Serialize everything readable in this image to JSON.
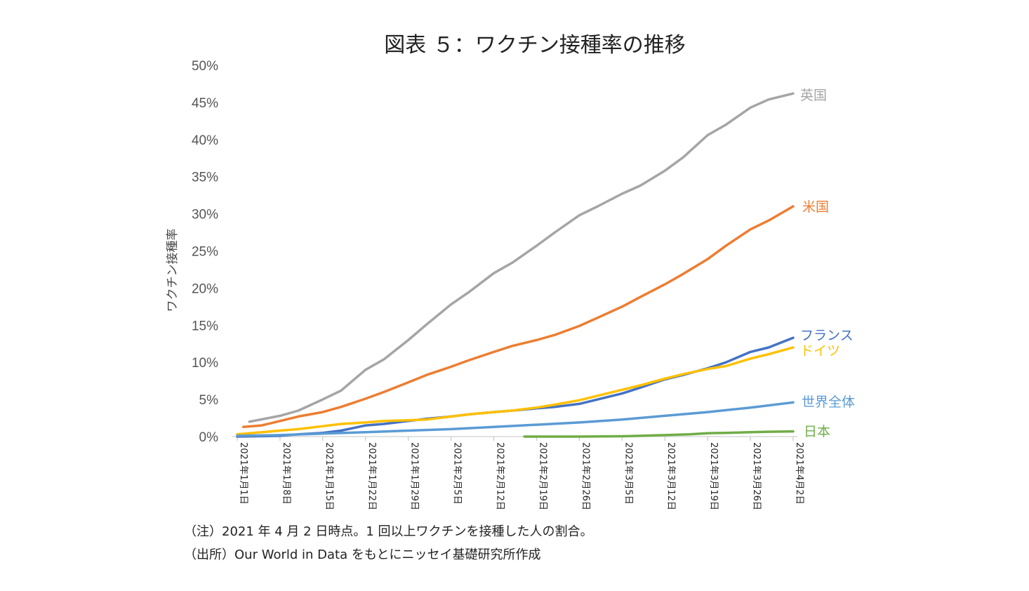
{
  "chart_data": {
    "type": "line",
    "title": "図表 ５：ワクチン接種率の推移",
    "ylabel": "ワクチン接種率",
    "xlabel": "",
    "ylim": [
      0,
      50
    ],
    "yticks": [
      0,
      5,
      10,
      15,
      20,
      25,
      30,
      35,
      40,
      45,
      50
    ],
    "ytick_labels": [
      "0%",
      "5%",
      "10%",
      "15%",
      "20%",
      "25%",
      "30%",
      "35%",
      "40%",
      "45%",
      "50%"
    ],
    "xlim": [
      0,
      91
    ],
    "xticks": [
      0,
      7,
      14,
      21,
      28,
      35,
      42,
      49,
      56,
      63,
      70,
      77,
      84,
      91
    ],
    "xtick_labels": [
      "2021年1月1日",
      "2021年1月8日",
      "2021年1月15日",
      "2021年1月22日",
      "2021年1月29日",
      "2021年2月5日",
      "2021年2月12日",
      "2021年2月19日",
      "2021年2月26日",
      "2021年3月5日",
      "2021年3月12日",
      "2021年3月19日",
      "2021年3月26日",
      "2021年4月2日"
    ],
    "legend": "inline-right",
    "series": [
      {
        "name": "英国",
        "color": "#A5A5A5",
        "x": [
          2,
          7,
          10,
          14,
          17,
          21,
          24,
          28,
          31,
          35,
          38,
          42,
          45,
          49,
          52,
          56,
          59,
          63,
          66,
          70,
          73,
          77,
          80,
          84,
          87,
          91
        ],
        "y": [
          2.0,
          2.8,
          3.5,
          5.0,
          6.2,
          9.0,
          10.4,
          13.0,
          15.1,
          17.8,
          19.5,
          22.0,
          23.4,
          25.7,
          27.5,
          29.8,
          31.0,
          32.7,
          33.8,
          35.8,
          37.6,
          40.6,
          42.0,
          44.3,
          45.4,
          46.2
        ]
      },
      {
        "name": "米国",
        "color": "#ED7D31",
        "x": [
          1,
          4,
          7,
          10,
          14,
          17,
          21,
          24,
          28,
          31,
          35,
          38,
          42,
          45,
          49,
          52,
          56,
          59,
          63,
          66,
          70,
          73,
          77,
          80,
          84,
          87,
          91
        ],
        "y": [
          1.3,
          1.5,
          2.1,
          2.7,
          3.3,
          4.0,
          5.1,
          6.0,
          7.3,
          8.3,
          9.4,
          10.3,
          11.4,
          12.2,
          13.0,
          13.7,
          14.9,
          16.0,
          17.5,
          18.8,
          20.5,
          21.9,
          23.9,
          25.7,
          27.9,
          29.1,
          31.0
        ]
      },
      {
        "name": "フランス",
        "color": "#4472C4",
        "x": [
          0,
          7,
          10,
          14,
          17,
          21,
          24,
          28,
          31,
          35,
          38,
          42,
          45,
          49,
          52,
          56,
          59,
          63,
          66,
          70,
          73,
          77,
          80,
          84,
          87,
          91
        ],
        "y": [
          0.0,
          0.1,
          0.3,
          0.5,
          0.8,
          1.5,
          1.7,
          2.1,
          2.4,
          2.7,
          3.0,
          3.3,
          3.5,
          3.8,
          4.0,
          4.4,
          5.0,
          5.8,
          6.6,
          7.7,
          8.3,
          9.2,
          10.0,
          11.4,
          12.0,
          13.3
        ]
      },
      {
        "name": "ドイツ",
        "color": "#FFC000",
        "x": [
          0,
          7,
          10,
          14,
          17,
          21,
          24,
          28,
          31,
          35,
          38,
          42,
          45,
          49,
          52,
          56,
          59,
          63,
          66,
          70,
          73,
          77,
          80,
          84,
          87,
          91
        ],
        "y": [
          0.3,
          0.8,
          1.0,
          1.4,
          1.7,
          1.9,
          2.1,
          2.2,
          2.3,
          2.7,
          3.0,
          3.3,
          3.5,
          3.9,
          4.3,
          4.9,
          5.5,
          6.3,
          6.9,
          7.8,
          8.4,
          9.1,
          9.5,
          10.5,
          11.1,
          12.0
        ]
      },
      {
        "name": "世界全体",
        "color": "#5B9BD5",
        "x": [
          0,
          7,
          14,
          21,
          28,
          35,
          42,
          49,
          56,
          63,
          70,
          77,
          84,
          91
        ],
        "y": [
          0.1,
          0.2,
          0.4,
          0.6,
          0.8,
          1.0,
          1.3,
          1.6,
          1.9,
          2.3,
          2.8,
          3.3,
          3.9,
          4.6
        ]
      },
      {
        "name": "日本",
        "color": "#70AD47",
        "x": [
          47,
          52,
          56,
          63,
          66,
          70,
          74,
          77,
          80,
          84,
          87,
          91
        ],
        "y": [
          0.0,
          0.0,
          0.0,
          0.05,
          0.1,
          0.2,
          0.3,
          0.45,
          0.5,
          0.6,
          0.65,
          0.7
        ]
      }
    ]
  },
  "notes": {
    "note": "（注）2021 年 4 月 2 日時点。1 回以上ワクチンを接種した人の割合。",
    "source": "（出所）Our World in Data をもとにニッセイ基礎研究所作成"
  }
}
